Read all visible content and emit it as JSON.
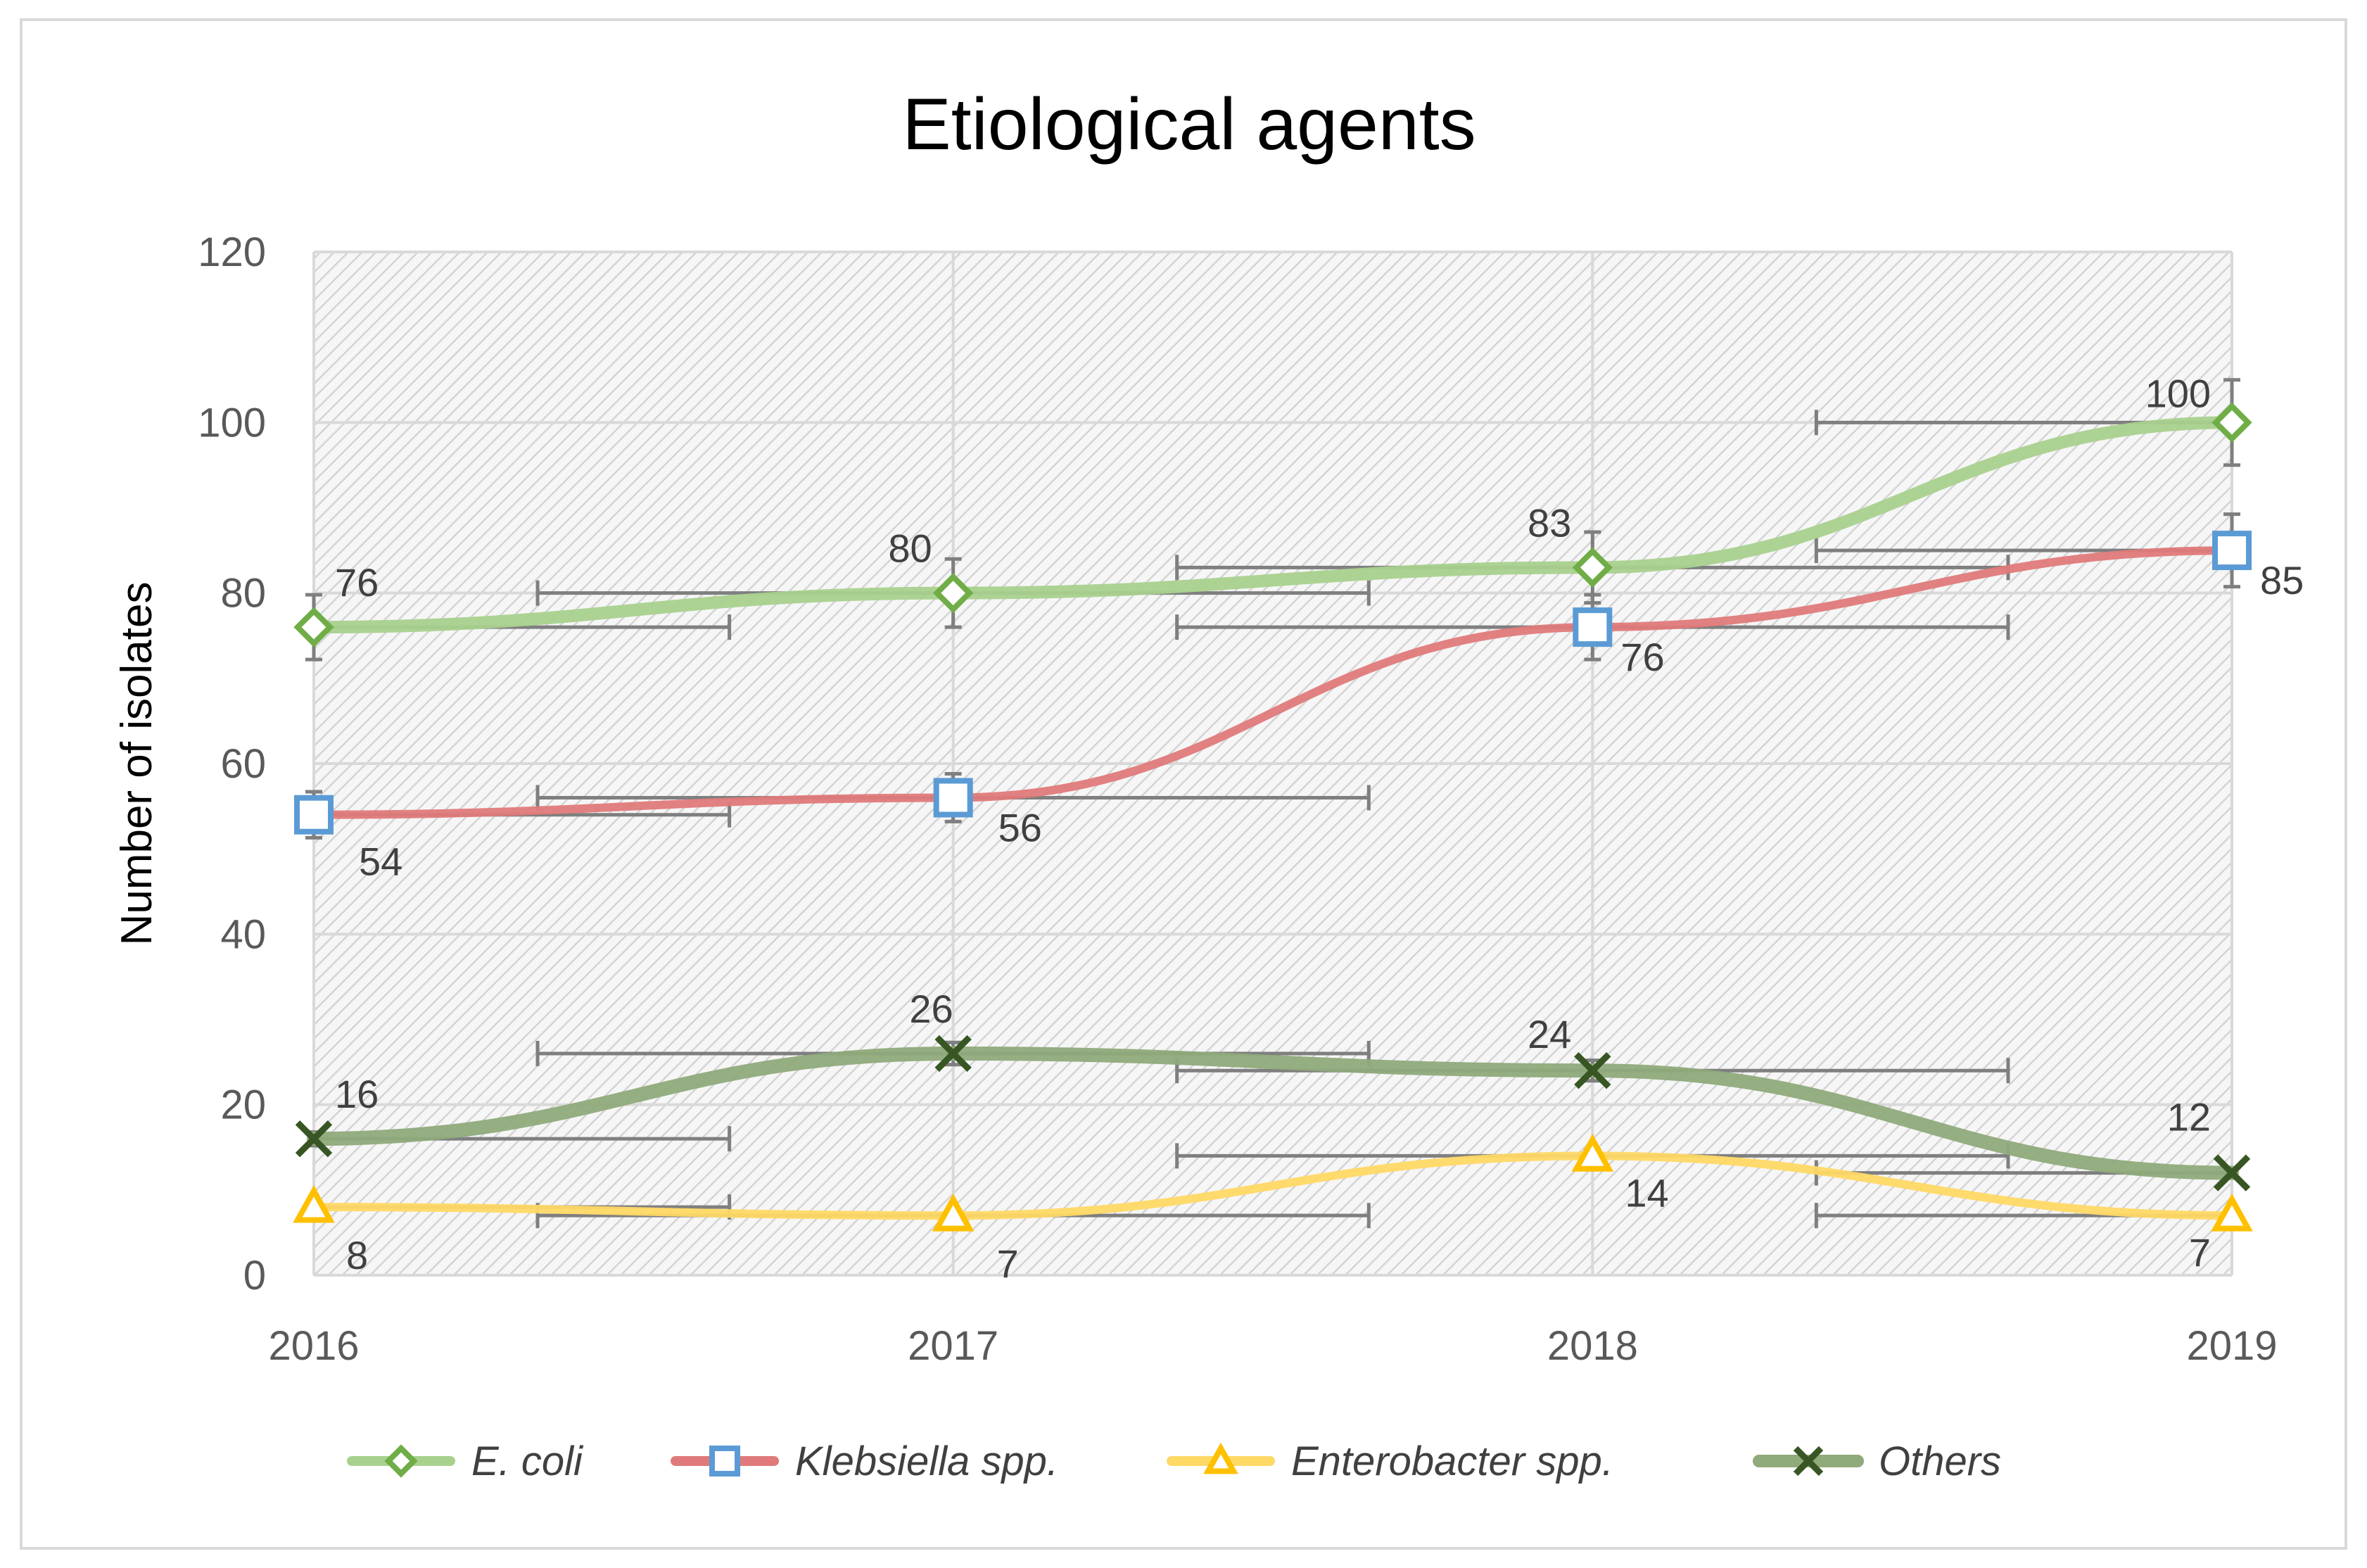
{
  "chart_data": {
    "type": "line",
    "title": "Etiological agents",
    "xlabel": "",
    "ylabel": "Number of isolates",
    "categories": [
      "2016",
      "2017",
      "2018",
      "2019"
    ],
    "ylim": [
      0,
      120
    ],
    "yticks": [
      "0",
      "20",
      "40",
      "60",
      "80",
      "100",
      "120"
    ],
    "grid": true,
    "smooth": true,
    "error_bars": true,
    "legend_position": "bottom",
    "series": [
      {
        "name": "E. coli",
        "values": [
          76,
          80,
          83,
          100
        ],
        "color": "#a9d18e",
        "marker": "diamond",
        "marker_color": "#70ad47",
        "labels": [
          "76",
          "80",
          "83",
          "100"
        ]
      },
      {
        "name": "Klebsiella spp.",
        "values": [
          54,
          56,
          76,
          85
        ],
        "color": "#e07a7a",
        "marker": "square",
        "marker_color": "#5b9bd5",
        "labels": [
          "54",
          "56",
          "76",
          "85"
        ]
      },
      {
        "name": "Enterobacter spp.",
        "values": [
          8,
          7,
          14,
          7
        ],
        "color": "#ffd966",
        "marker": "triangle",
        "marker_color": "#ffc000",
        "labels": [
          "8",
          "7",
          "14",
          "7"
        ]
      },
      {
        "name": "Others",
        "values": [
          16,
          26,
          24,
          12
        ],
        "color": "#8faa7b",
        "marker": "x",
        "marker_color": "#375623",
        "labels": [
          "16",
          "26",
          "24",
          "12"
        ]
      }
    ]
  }
}
